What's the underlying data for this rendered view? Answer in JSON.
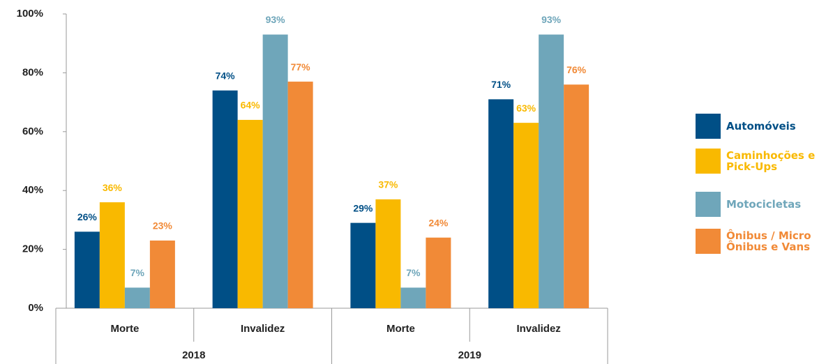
{
  "chart_data": {
    "type": "bar",
    "categories": [
      "Morte",
      "Invalidez",
      "Morte",
      "Invalidez"
    ],
    "groups": [
      "2018",
      "2019"
    ],
    "series": [
      {
        "name": "Automóveis",
        "color": "#004f86",
        "values": [
          26,
          74,
          29,
          71
        ],
        "value_labels": [
          "26%",
          "74%",
          "29%",
          "71%"
        ]
      },
      {
        "name": "Caminhoções e Pick-Ups",
        "color": "#f9b900",
        "values": [
          36,
          64,
          37,
          63
        ],
        "value_labels": [
          "36%",
          "64%",
          "37%",
          "63%"
        ]
      },
      {
        "name": "Motocicletas",
        "color": "#6fa6ba",
        "values": [
          7,
          93,
          7,
          93
        ],
        "value_labels": [
          "7%",
          "93%",
          "7%",
          "93%"
        ]
      },
      {
        "name": "Ônibus / Micro Ônibus e Vans",
        "color": "#f18a37",
        "values": [
          23,
          77,
          24,
          76
        ],
        "value_labels": [
          "23%",
          "77%",
          "24%",
          "76%"
        ]
      }
    ],
    "ylim": [
      0,
      100
    ],
    "yticks": [
      {
        "value": 0,
        "label": "0%"
      },
      {
        "value": 20,
        "label": "20%"
      },
      {
        "value": 40,
        "label": "40%"
      },
      {
        "value": 60,
        "label": "60%"
      },
      {
        "value": 80,
        "label": "80%"
      },
      {
        "value": 100,
        "label": "100%"
      }
    ],
    "legend": "right"
  }
}
